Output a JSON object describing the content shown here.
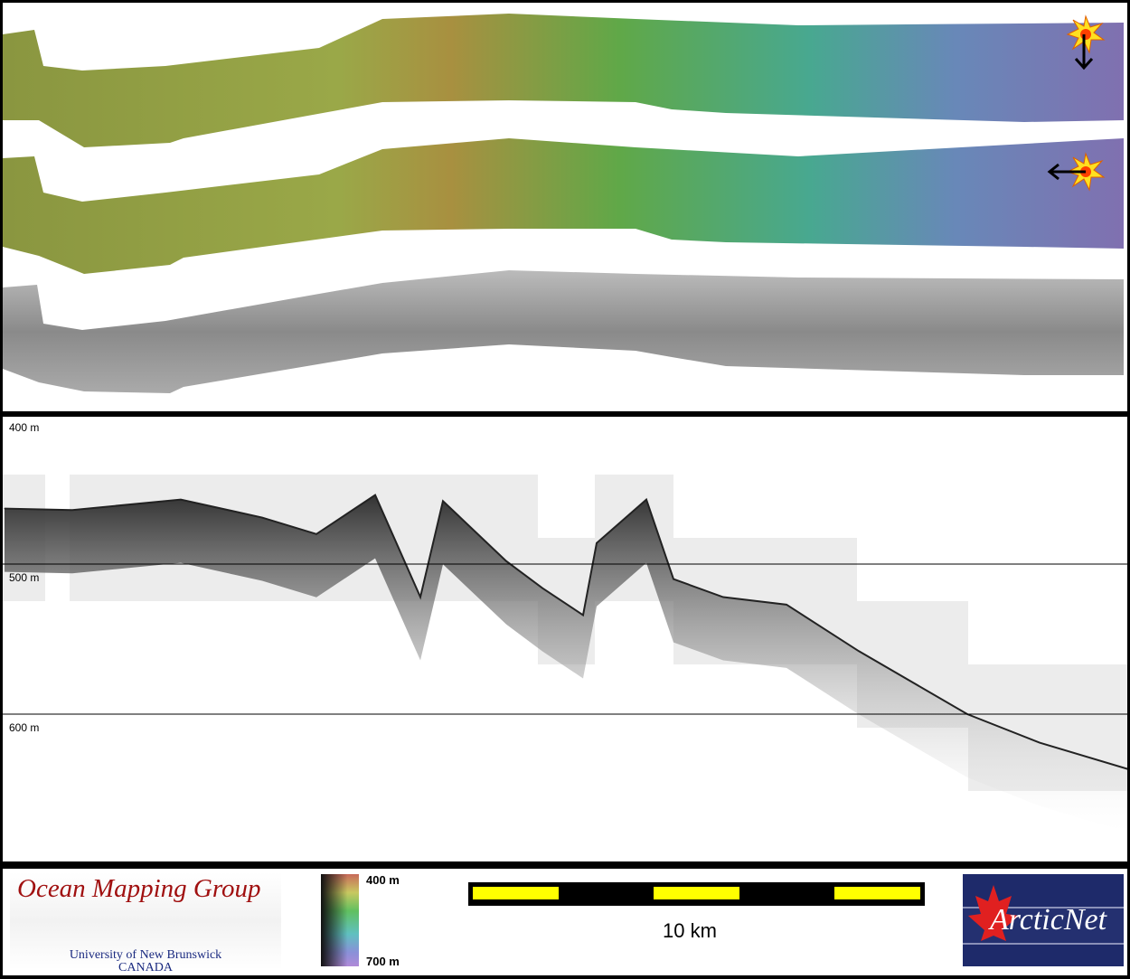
{
  "profile": {
    "depth_labels": [
      "400 m",
      "500 m",
      "600 m"
    ],
    "gridline_depths_m": [
      500,
      600
    ],
    "chart_data": {
      "type": "line",
      "xlabel": "",
      "ylabel": "",
      "ylim": [
        400,
        700
      ],
      "y_inverted": true,
      "grid": true,
      "x_km": [
        0.1,
        1.6,
        4.0,
        5.8,
        7.0,
        8.3,
        9.3,
        9.8,
        11.2,
        12.0,
        12.9,
        13.2,
        14.3,
        14.9,
        16.0,
        17.4,
        19.0,
        21.4,
        23.0,
        25.0
      ],
      "seafloor_depth_m": [
        463,
        464,
        457,
        469,
        480,
        454,
        522,
        458,
        498,
        516,
        534,
        486,
        457,
        510,
        522,
        527,
        558,
        600,
        619,
        637
      ]
    }
  },
  "strips": {
    "sun_icons": [
      "sun-illumination-from-north",
      "sun-illumination-from-east"
    ],
    "colors": {
      "shallow": "#c8a050",
      "mid": "#70b040",
      "teal": "#40a8a0",
      "deep": "#7868b0"
    }
  },
  "legend": {
    "colorbar_top": "400 m",
    "colorbar_bottom": "700 m",
    "scale_label": "10 km"
  },
  "logos": {
    "omg_title": "Ocean Mapping Group",
    "omg_line1": "University of New Brunswick",
    "omg_line2": "CANADA",
    "arcticnet": "ArcticNet"
  }
}
